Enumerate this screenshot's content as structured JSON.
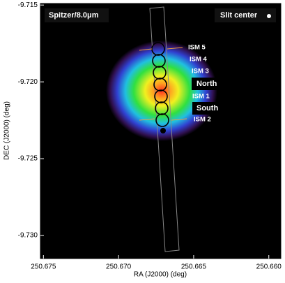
{
  "chart_data": {
    "type": "image",
    "xlabel": "RA (J2000) (deg)",
    "ylabel": "DEC (J2000) (deg)",
    "xlim": [
      250.6752,
      250.6592
    ],
    "ylim": [
      -9.7149,
      -9.7315
    ],
    "xticks": [
      250.675,
      {
        "value": 250.67,
        "label": "250.670"
      },
      250.665,
      {
        "value": 250.66,
        "label": "250.660"
      }
    ],
    "yticks": [
      -9.715,
      {
        "value": -9.72,
        "label": "-9.720"
      },
      -9.725,
      {
        "value": -9.73,
        "label": "-9.730"
      }
    ],
    "band": "Spitzer/8.0μm",
    "legend": "Slit center",
    "annotations": [
      "ISM 5",
      "ISM 4",
      "ISM 3",
      "North",
      "ISM 1",
      "South",
      "ISM 2"
    ]
  }
}
